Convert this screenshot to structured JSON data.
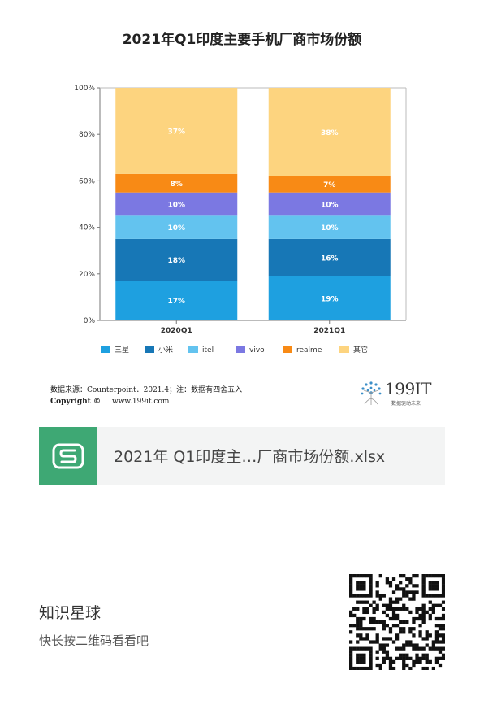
{
  "chart_data": {
    "type": "bar",
    "stacked": true,
    "title": "2021年Q1印度主要手机厂商市场份额",
    "categories": [
      "2020Q1",
      "2021Q1"
    ],
    "ylim": [
      0,
      100
    ],
    "yticks": [
      "0%",
      "20%",
      "40%",
      "60%",
      "80%",
      "100%"
    ],
    "grid": false,
    "legend_position": "bottom",
    "series": [
      {
        "name": "三星",
        "values": [
          17,
          19
        ],
        "labels": [
          "17%",
          "19%"
        ],
        "color": "#1ea0e0"
      },
      {
        "name": "小米",
        "values": [
          18,
          16
        ],
        "labels": [
          "18%",
          "16%"
        ],
        "color": "#1777b6"
      },
      {
        "name": "itel",
        "values": [
          10,
          10
        ],
        "labels": [
          "10%",
          "10%"
        ],
        "color": "#63c3ef"
      },
      {
        "name": "vivo",
        "values": [
          10,
          10
        ],
        "labels": [
          "10%",
          "10%"
        ],
        "color": "#7b78e2"
      },
      {
        "name": "realme",
        "values": [
          8,
          7
        ],
        "labels": [
          "8%",
          "7%"
        ],
        "color": "#f88a15"
      },
      {
        "name": "其它",
        "values": [
          37,
          38
        ],
        "labels": [
          "37%",
          "38%"
        ],
        "color": "#fdd47f"
      }
    ]
  },
  "source": {
    "line": "数据来源：Counterpoint．2021.4；注：数据有四舍五入",
    "copyright_label": "Copyright ©",
    "website": "www.199it.com"
  },
  "brand": {
    "name": "199IT",
    "tagline": "数据驱动未来"
  },
  "file": {
    "icon_letter": "S",
    "name": "2021年 Q1印度主…厂商市场份额.xlsx"
  },
  "footer": {
    "title": "知识星球",
    "subtitle": "快长按二维码看看吧"
  },
  "colors": {
    "file_icon": "#3ea874",
    "card_bg": "#f3f4f4"
  }
}
